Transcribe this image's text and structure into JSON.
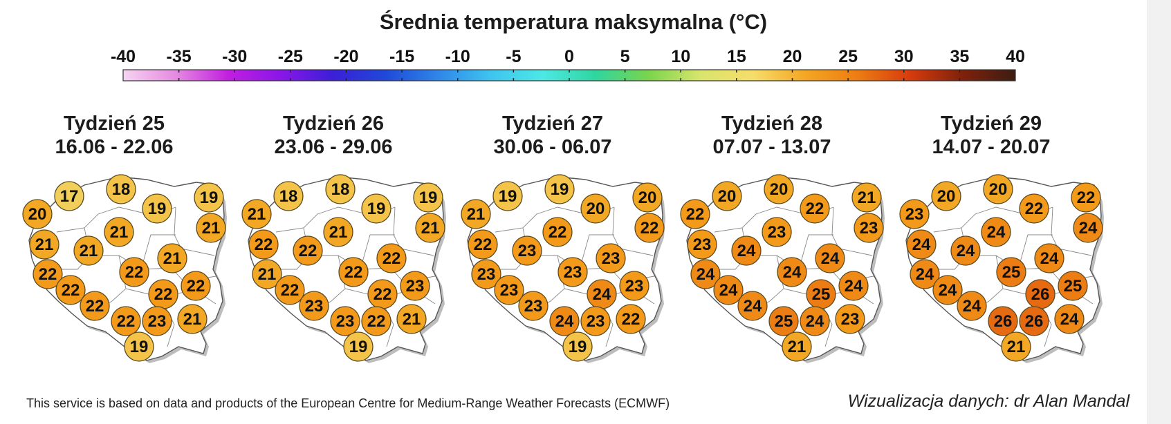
{
  "title": "Średnia temperatura maksymalna (°C)",
  "legend": {
    "min": -40,
    "max": 40,
    "ticks": [
      "-40",
      "-35",
      "-30",
      "-25",
      "-20",
      "-15",
      "-10",
      "-5",
      "0",
      "5",
      "10",
      "15",
      "20",
      "25",
      "30",
      "35",
      "40"
    ],
    "color_stops": [
      "#f6d4f2",
      "#e58be0",
      "#c21fe0",
      "#8a16e8",
      "#3b1fd8",
      "#1f49d8",
      "#2f86e8",
      "#3ec4ef",
      "#4de8e4",
      "#2fd6a0",
      "#7ad44c",
      "#d8e56c",
      "#f6dd6a",
      "#f4a623",
      "#ed7c12",
      "#d63b0d",
      "#7e210c",
      "#3c1d12"
    ]
  },
  "weeks": [
    {
      "label": "Tydzień 25",
      "dates": "16.06 - 22.06",
      "values": [
        "20",
        "17",
        "18",
        "19",
        "19",
        "21",
        "21",
        "21",
        "21",
        "21",
        "22",
        "22",
        "22",
        "22",
        "22",
        "22",
        "22",
        "23",
        "21",
        "19"
      ]
    },
    {
      "label": "Tydzień 26",
      "dates": "23.06 - 29.06",
      "values": [
        "21",
        "18",
        "18",
        "19",
        "19",
        "21",
        "22",
        "22",
        "21",
        "22",
        "21",
        "22",
        "22",
        "22",
        "23",
        "23",
        "23",
        "22",
        "21",
        "19"
      ]
    },
    {
      "label": "Tydzień 27",
      "dates": "30.06 - 06.07",
      "values": [
        "21",
        "19",
        "19",
        "20",
        "20",
        "22",
        "22",
        "23",
        "22",
        "23",
        "23",
        "23",
        "23",
        "24",
        "23",
        "23",
        "24",
        "23",
        "22",
        "19"
      ]
    },
    {
      "label": "Tydzień 28",
      "dates": "07.07 - 13.07",
      "values": [
        "22",
        "20",
        "20",
        "22",
        "21",
        "23",
        "23",
        "24",
        "23",
        "24",
        "24",
        "24",
        "24",
        "25",
        "24",
        "24",
        "25",
        "24",
        "23",
        "21"
      ]
    },
    {
      "label": "Tydzień 29",
      "dates": "14.07 - 20.07",
      "values": [
        "23",
        "20",
        "20",
        "22",
        "22",
        "24",
        "24",
        "24",
        "24",
        "24",
        "24",
        "24",
        "25",
        "26",
        "25",
        "24",
        "26",
        "26",
        "24",
        "21"
      ]
    }
  ],
  "footer": {
    "source": "This service is based on data and products of the European Centre for Medium-Range Weather Forecasts (ECMWF)",
    "credit": "Wizualizacja danych: dr Alan Mandal"
  }
}
